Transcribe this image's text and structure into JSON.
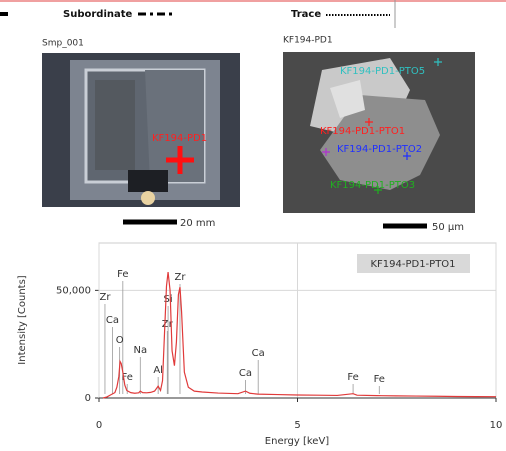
{
  "legend_strip": {
    "items": [
      "Subordinate",
      "Trace"
    ]
  },
  "images": [
    {
      "title": "Smp_001",
      "marker_label": "KF194-PD1",
      "scale": "20 mm"
    },
    {
      "title": "KF194-PD1",
      "points": [
        "KF194-PD1-PTO5",
        "KF194-PD1-PTO1",
        "KF194-PD1-PTO2",
        "KF194-PD1-PTO3"
      ],
      "scale": "50 µm"
    }
  ],
  "chart_data": {
    "type": "line",
    "xlabel": "Energy [keV]",
    "ylabel": "Intensity [Counts]",
    "x": [
      0.1,
      0.2,
      0.3,
      0.4,
      0.45,
      0.5,
      0.53,
      0.56,
      0.6,
      0.65,
      0.7,
      0.8,
      0.9,
      1.0,
      1.04,
      1.1,
      1.2,
      1.3,
      1.4,
      1.49,
      1.55,
      1.6,
      1.65,
      1.7,
      1.74,
      1.79,
      1.84,
      1.9,
      1.95,
      2.0,
      2.04,
      2.08,
      2.15,
      2.25,
      2.4,
      2.6,
      3.0,
      3.5,
      3.69,
      3.8,
      4.0,
      4.5,
      5.0,
      5.5,
      6.0,
      6.4,
      6.5,
      7.0,
      7.5,
      8.0,
      8.5,
      9.0,
      9.5,
      10.0
    ],
    "series": [
      {
        "name": "KF194-PD1-PTO1",
        "color": "#e03a3a",
        "values": [
          0,
          500,
          1500,
          2500,
          5000,
          10000,
          17000,
          16000,
          12000,
          6000,
          3500,
          2500,
          2200,
          2400,
          3200,
          2500,
          2400,
          2600,
          3200,
          5500,
          3500,
          8000,
          30000,
          52000,
          58500,
          50000,
          22000,
          15000,
          26000,
          48000,
          51500,
          40000,
          12000,
          5000,
          3200,
          2800,
          2300,
          2000,
          3200,
          2200,
          1800,
          1600,
          1400,
          1300,
          1200,
          2000,
          1300,
          1100,
          1000,
          900,
          800,
          700,
          650,
          600
        ]
      }
    ],
    "xlim": [
      0,
      10
    ],
    "ylim": [
      0,
      72000
    ],
    "xticks": [
      0,
      5,
      10
    ],
    "yticks": [
      0,
      {
        "value": 50000,
        "label": "50,000"
      }
    ],
    "grid": true,
    "annotations": [
      {
        "text": "Zr",
        "x": 0.15
      },
      {
        "text": "Fe",
        "x": 0.6
      },
      {
        "text": "Ca",
        "x": 0.34
      },
      {
        "text": "O",
        "x": 0.52
      },
      {
        "text": "Fe",
        "x": 0.71
      },
      {
        "text": "Na",
        "x": 1.04
      },
      {
        "text": "Al",
        "x": 1.49
      },
      {
        "text": "Zr",
        "x": 1.72
      },
      {
        "text": "Si",
        "x": 1.74
      },
      {
        "text": "Zr",
        "x": 2.04
      },
      {
        "text": "Ca",
        "x": 3.69
      },
      {
        "text": "Ca",
        "x": 4.01
      },
      {
        "text": "Fe",
        "x": 6.4
      },
      {
        "text": "Fe",
        "x": 7.06
      }
    ]
  }
}
